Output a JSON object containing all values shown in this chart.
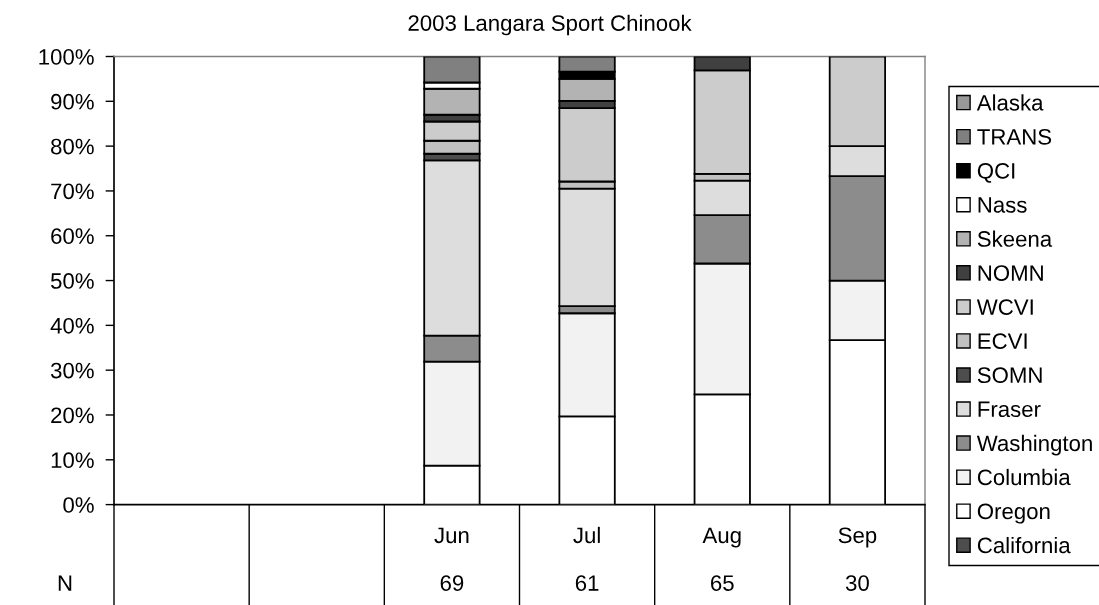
{
  "chart_data": {
    "type": "bar",
    "stacked": true,
    "title": "2003 Langara Sport Chinook",
    "categories": [
      null,
      null,
      "Jun",
      "Jul",
      "Aug",
      "Sep"
    ],
    "series": [
      {
        "name": "California",
        "color": "#4d4d4d",
        "values": [
          null,
          null,
          0,
          0,
          0,
          0
        ]
      },
      {
        "name": "Oregon",
        "color": "#ffffff",
        "values": [
          null,
          null,
          8.7,
          19.7,
          24.6,
          36.7
        ]
      },
      {
        "name": "Columbia",
        "color": "#f2f2f2",
        "values": [
          null,
          null,
          23.2,
          23.0,
          29.2,
          13.3
        ]
      },
      {
        "name": "Washington",
        "color": "#8c8c8c",
        "values": [
          null,
          null,
          5.8,
          1.6,
          10.8,
          23.3
        ]
      },
      {
        "name": "Fraser",
        "color": "#dddddd",
        "values": [
          null,
          null,
          39.1,
          26.2,
          7.7,
          6.7
        ]
      },
      {
        "name": "SOMN",
        "color": "#4d4d4d",
        "values": [
          null,
          null,
          1.5,
          0,
          0,
          0
        ]
      },
      {
        "name": "ECVI",
        "color": "#c0c0c0",
        "values": [
          null,
          null,
          2.9,
          1.6,
          1.5,
          0
        ]
      },
      {
        "name": "WCVI",
        "color": "#cccccc",
        "values": [
          null,
          null,
          4.3,
          16.4,
          23.1,
          20.0
        ]
      },
      {
        "name": "NOMN",
        "color": "#404040",
        "values": [
          null,
          null,
          1.5,
          1.6,
          3.1,
          0
        ]
      },
      {
        "name": "Skeena",
        "color": "#b3b3b3",
        "values": [
          null,
          null,
          5.8,
          4.9,
          0,
          0
        ]
      },
      {
        "name": "Nass",
        "color": "#ffffff",
        "values": [
          null,
          null,
          1.4,
          0,
          0,
          0
        ]
      },
      {
        "name": "QCI",
        "color": "#000000",
        "values": [
          null,
          null,
          0,
          1.6,
          0,
          0
        ]
      },
      {
        "name": "TRANS",
        "color": "#808080",
        "values": [
          null,
          null,
          5.8,
          3.4,
          0,
          0
        ]
      },
      {
        "name": "Alaska",
        "color": "#999999",
        "values": [
          null,
          null,
          0,
          0,
          0,
          0
        ]
      }
    ],
    "ylim": [
      0,
      100
    ],
    "yticks": [
      {
        "value": 0,
        "label": "0%"
      },
      {
        "value": 10,
        "label": "10%"
      },
      {
        "value": 20,
        "label": "20%"
      },
      {
        "value": 30,
        "label": "30%"
      },
      {
        "value": 40,
        "label": "40%"
      },
      {
        "value": 50,
        "label": "50%"
      },
      {
        "value": 60,
        "label": "60%"
      },
      {
        "value": 70,
        "label": "70%"
      },
      {
        "value": 80,
        "label": "80%"
      },
      {
        "value": 90,
        "label": "90%"
      },
      {
        "value": 100,
        "label": "100%"
      }
    ],
    "legend": "right",
    "annotations": [
      "N",
      "69",
      "61",
      "65",
      "30"
    ]
  }
}
